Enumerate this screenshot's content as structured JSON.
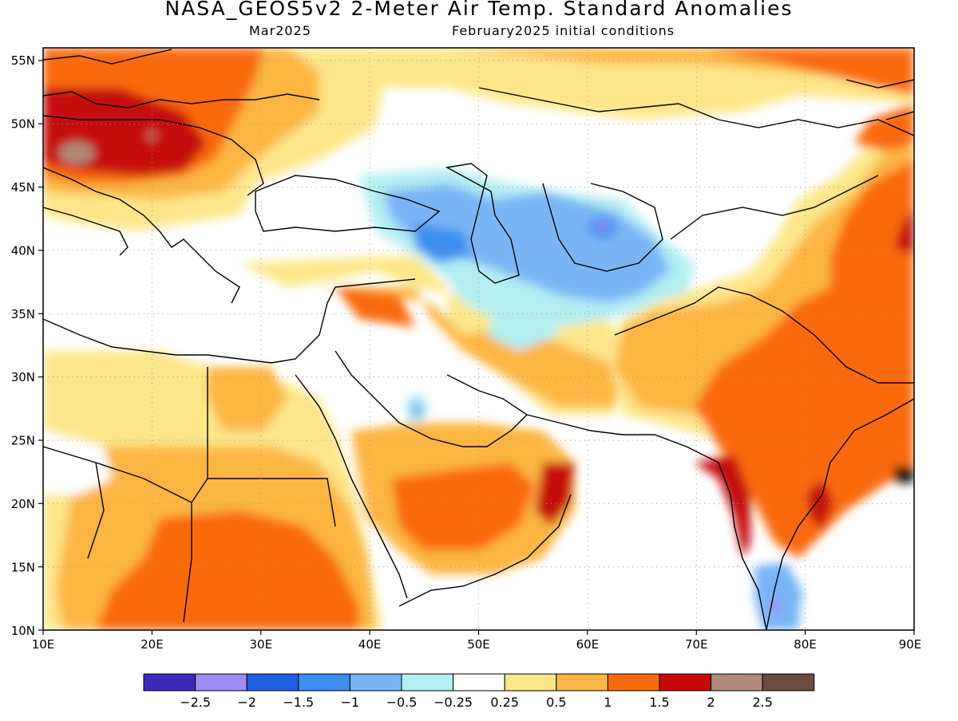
{
  "title": "NASA_GEOS5v2 2-Meter Air Temp. Standard Anomalies",
  "subtitle_left": "Mar2025",
  "subtitle_right": "February2025 initial conditions",
  "map": {
    "lon_range": [
      10,
      90
    ],
    "lat_range": [
      10,
      56
    ],
    "x_ticks": [
      "10E",
      "20E",
      "30E",
      "40E",
      "50E",
      "60E",
      "70E",
      "80E",
      "90E"
    ],
    "y_ticks": [
      "10N",
      "15N",
      "20N",
      "25N",
      "30N",
      "35N",
      "40N",
      "45N",
      "50N",
      "55N"
    ],
    "grid": "dotted"
  },
  "colorbar": {
    "colors": [
      "#3b2bb8",
      "#9f8cf5",
      "#1f5fe0",
      "#3d8ef0",
      "#79b5f5",
      "#b4eef2",
      "#ffffff",
      "#fde68a",
      "#fbb643",
      "#f96a0c",
      "#c50a0a",
      "#b08a7a",
      "#6d4b3f"
    ],
    "labels": [
      "−2.5",
      "−2",
      "−1.5",
      "−1",
      "−0.5",
      "−0.25",
      "0.25",
      "0.5",
      "1",
      "1.5",
      "2",
      "2.5"
    ]
  }
}
